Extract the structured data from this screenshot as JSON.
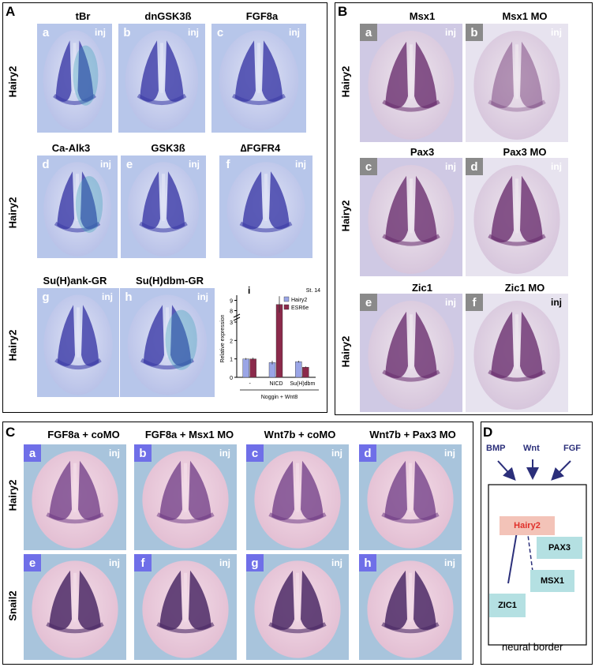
{
  "panelA": {
    "letter": "A",
    "rowLabel": "Hairy2",
    "titles": [
      "tBr",
      "dnGSK3ß",
      "FGF8a",
      "Ca-Alk3",
      "GSK3ß",
      "∆FGFR4",
      "Su(H)ank-GR",
      "Su(H)dbm-GR"
    ],
    "tileLetters": [
      "a",
      "b",
      "c",
      "d",
      "e",
      "f",
      "g",
      "h"
    ],
    "inj": "inj"
  },
  "panelB": {
    "letter": "B",
    "rowLabel": "Hairy2",
    "titles": [
      "Msx1",
      "Msx1 MO",
      "Pax3",
      "Pax3 MO",
      "Zic1",
      "Zic1 MO"
    ],
    "tileLetters": [
      "a",
      "b",
      "c",
      "d",
      "e",
      "f"
    ],
    "inj": "inj"
  },
  "panelC": {
    "letter": "C",
    "titles": [
      "FGF8a + coMO",
      "FGF8a + Msx1 MO",
      "Wnt7b + coMO",
      "Wnt7b + Pax3 MO"
    ],
    "rowLabels": [
      "Hairy2",
      "Snail2"
    ],
    "tileLetters": [
      "a",
      "b",
      "c",
      "d",
      "e",
      "f",
      "g",
      "h"
    ],
    "inj": "inj"
  },
  "panelD": {
    "letter": "D",
    "signals": [
      "BMP",
      "Wnt",
      "FGF"
    ],
    "target": "Hairy2",
    "regulators": [
      "PAX3",
      "MSX1",
      "ZIC1"
    ],
    "caption": "neural border",
    "colors": {
      "signal": "#2b2f7a",
      "target_fill": "#f3c3b8",
      "target_text": "#e0302a",
      "reg_fill": "#b4e0e2"
    }
  },
  "chart_data": {
    "type": "bar",
    "panel_letter": "i",
    "stage": "St. 14",
    "ylabel": "Relative expression",
    "yticks": [
      "0",
      "1",
      "2",
      "3",
      "8",
      "9"
    ],
    "ylim_lower": [
      0,
      3
    ],
    "ylim_upper": [
      7.5,
      9.5
    ],
    "categories": [
      "-",
      "NICD",
      "Su(H)dbm"
    ],
    "series": [
      {
        "name": "Hairy2",
        "color": "#9aa5e6",
        "values": [
          1.0,
          0.8,
          0.85
        ]
      },
      {
        "name": "ESR6e",
        "color": "#8b2a4b",
        "values": [
          1.0,
          8.6,
          0.55
        ]
      }
    ],
    "errors": {
      "Hairy2": [
        0.05,
        0.1,
        0.05
      ],
      "ESR6e": [
        0.07,
        0.8,
        0.04
      ]
    },
    "xgroup_label": "Noggin + Wnt8"
  }
}
